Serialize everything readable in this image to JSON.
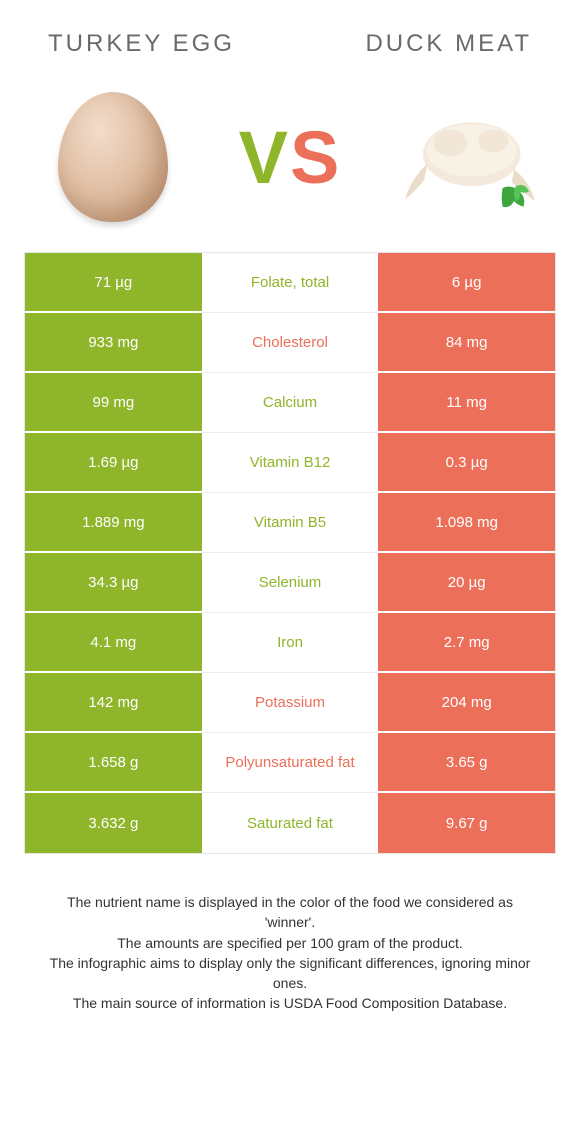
{
  "colors": {
    "left": "#8fb52a",
    "right": "#ec6f59",
    "mid_bg": "#ffffff",
    "row_divider": "#ffffff"
  },
  "titles": {
    "left": "TURKEY EGG",
    "right": "DUCK MEAT"
  },
  "vs": {
    "v": "V",
    "s": "S"
  },
  "rows": [
    {
      "left": "71 µg",
      "label": "Folate, total",
      "right": "6 µg",
      "winner": "left"
    },
    {
      "left": "933 mg",
      "label": "Cholesterol",
      "right": "84 mg",
      "winner": "right"
    },
    {
      "left": "99 mg",
      "label": "Calcium",
      "right": "11 mg",
      "winner": "left"
    },
    {
      "left": "1.69 µg",
      "label": "Vitamin B12",
      "right": "0.3 µg",
      "winner": "left"
    },
    {
      "left": "1.889 mg",
      "label": "Vitamin B5",
      "right": "1.098 mg",
      "winner": "left"
    },
    {
      "left": "34.3 µg",
      "label": "Selenium",
      "right": "20 µg",
      "winner": "left"
    },
    {
      "left": "4.1 mg",
      "label": "Iron",
      "right": "2.7 mg",
      "winner": "left"
    },
    {
      "left": "142 mg",
      "label": "Potassium",
      "right": "204 mg",
      "winner": "right"
    },
    {
      "left": "1.658 g",
      "label": "Polyunsaturated fat",
      "right": "3.65 g",
      "winner": "right"
    },
    {
      "left": "3.632 g",
      "label": "Saturated fat",
      "right": "9.67 g",
      "winner": "left"
    }
  ],
  "footer": {
    "line1": "The nutrient name is displayed in the color of the food we considered as 'winner'.",
    "line2": "The amounts are specified per 100 gram of the product.",
    "line3": "The infographic aims to display only the significant differences, ignoring minor ones.",
    "line4": "The main source of information is USDA Food Composition Database."
  }
}
